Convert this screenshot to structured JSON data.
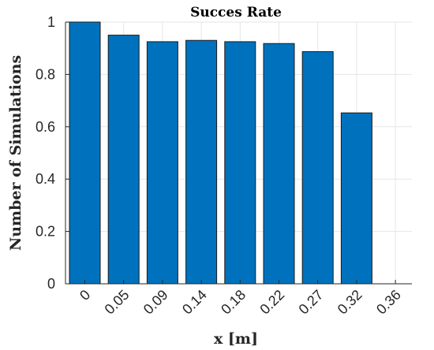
{
  "chart_data": {
    "type": "bar",
    "title": "Succes Rate",
    "xlabel": "x [m]",
    "ylabel": "Number of Simulations",
    "categories": [
      "0",
      "0.05",
      "0.09",
      "0.14",
      "0.18",
      "0.22",
      "0.27",
      "0.32",
      "0.36"
    ],
    "values": [
      1.0,
      0.95,
      0.925,
      0.93,
      0.925,
      0.918,
      0.887,
      0.653,
      null
    ],
    "ylim": [
      0,
      1
    ],
    "yticks": [
      "0",
      "0.2",
      "0.4",
      "0.6",
      "0.8",
      "1"
    ],
    "grid": true,
    "bar_color": "#0072BD"
  }
}
